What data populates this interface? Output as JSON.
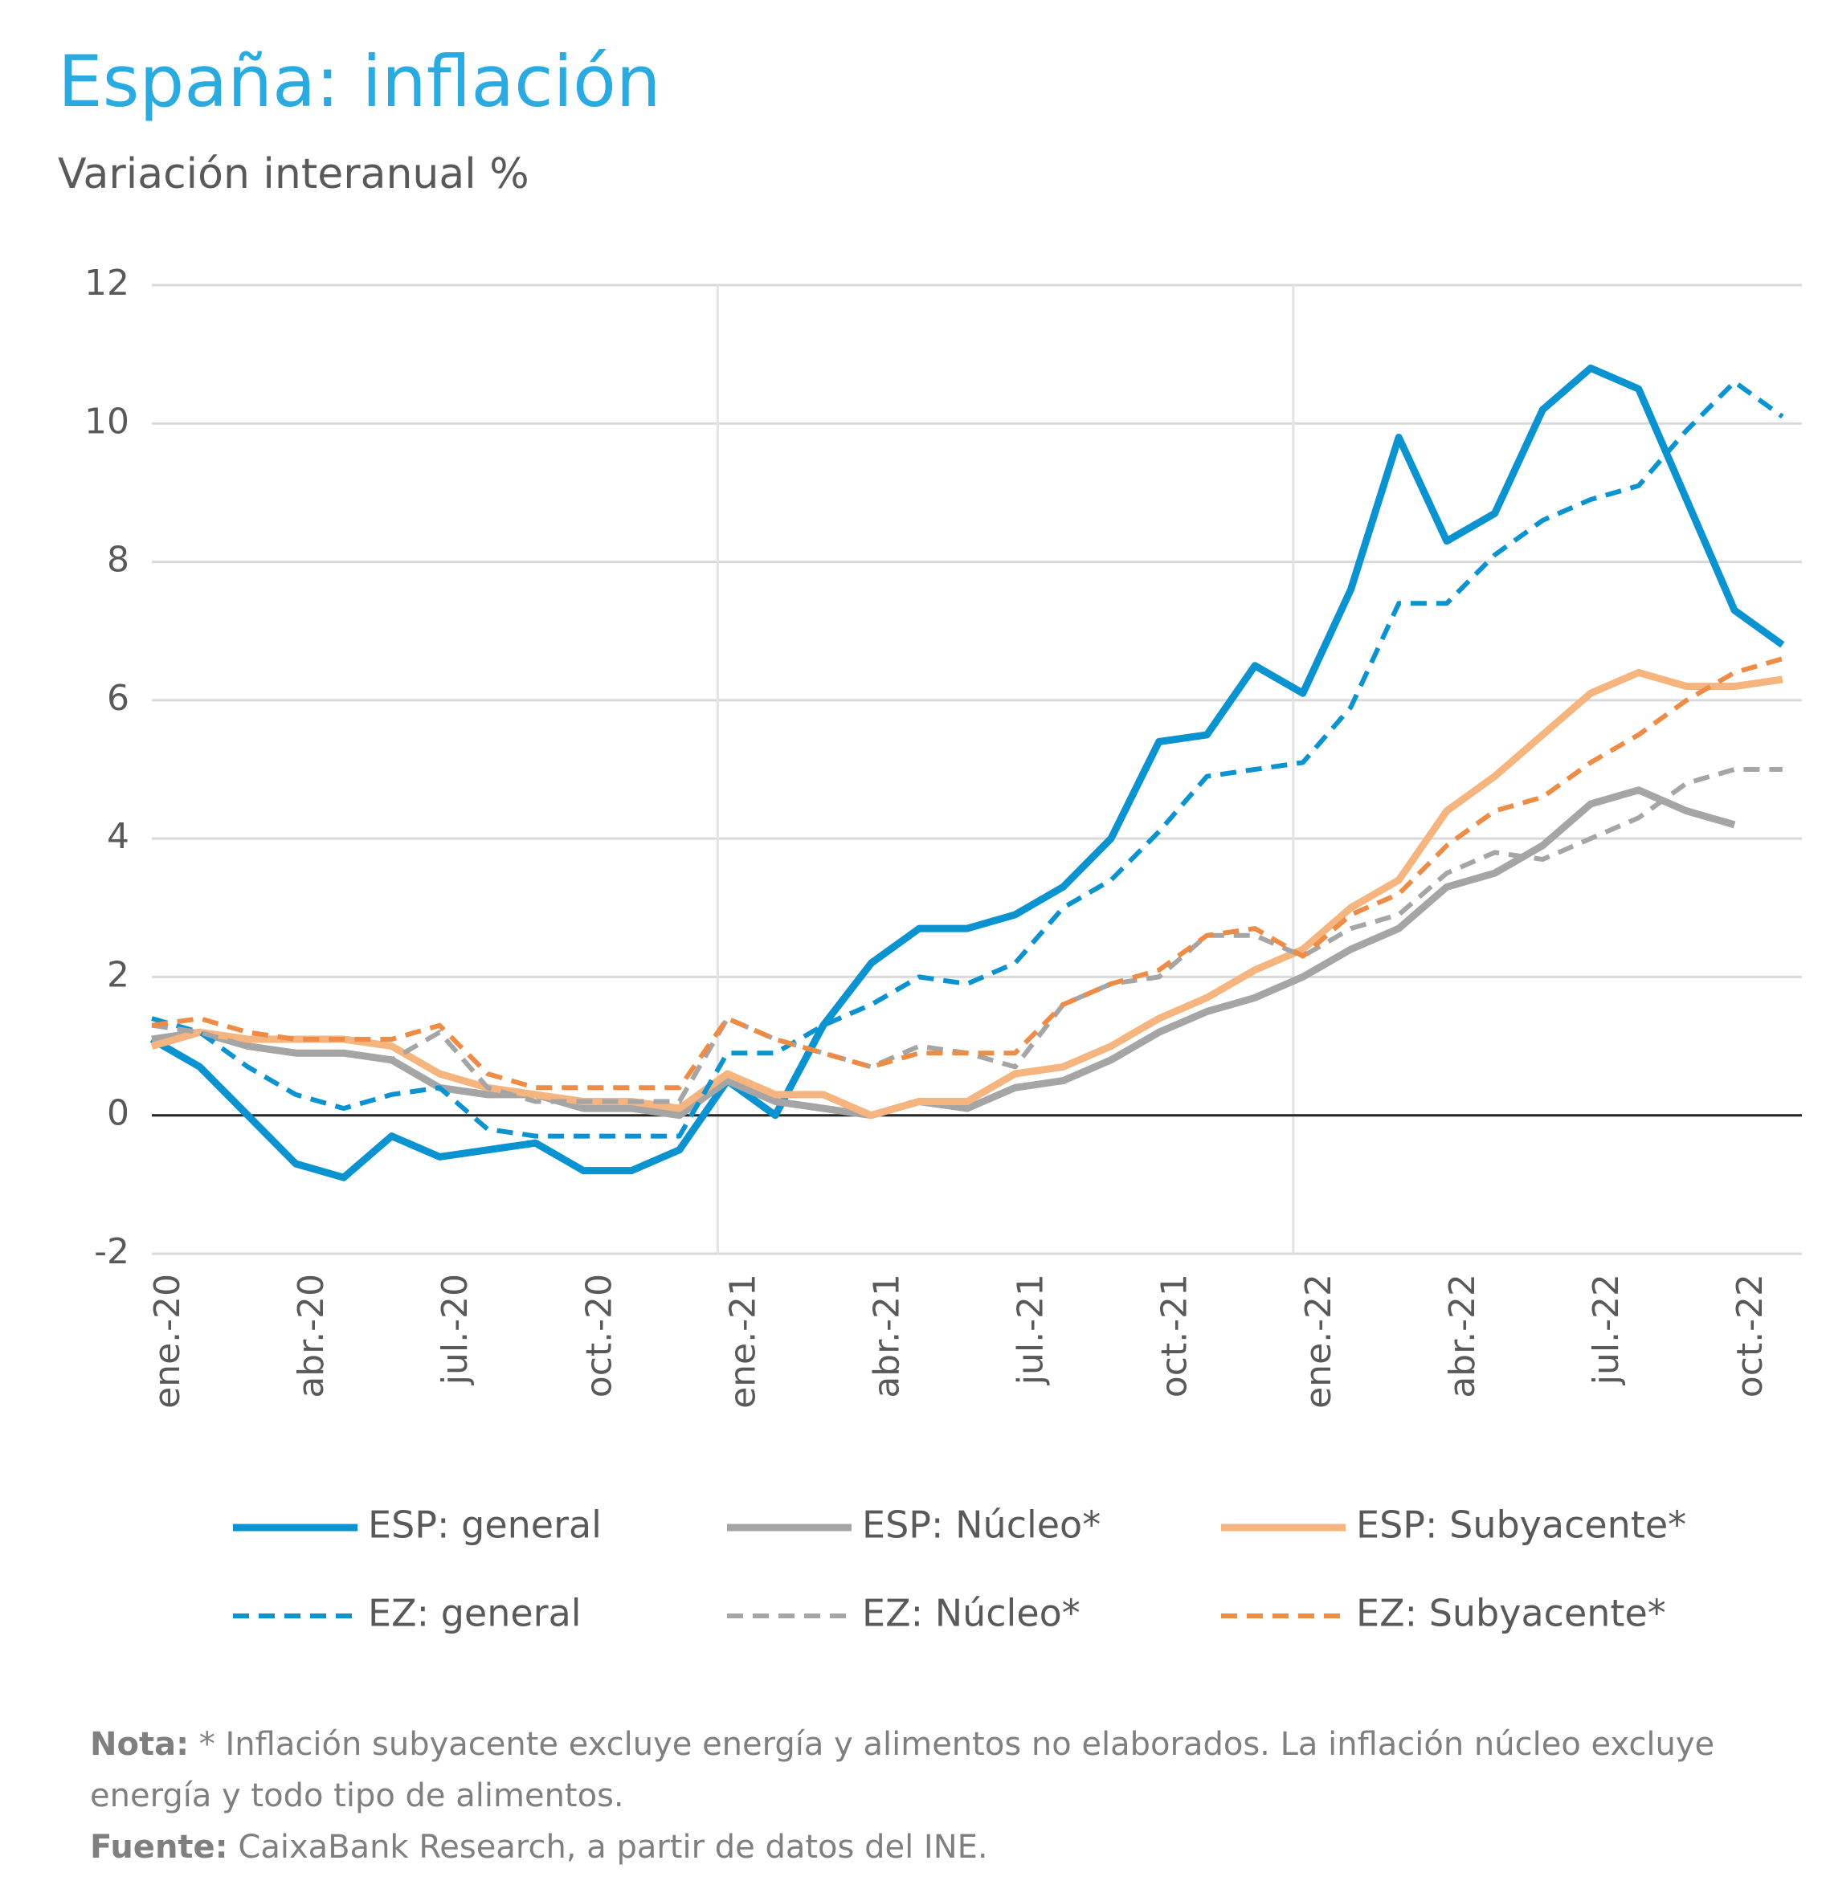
{
  "chart_data": {
    "type": "line",
    "title": "España: inflación",
    "subtitle": "Variación interanual %",
    "categories": [
      "ene.-20",
      null,
      null,
      "abr.-20",
      null,
      null,
      "jul.-20",
      null,
      null,
      "oct.-20",
      null,
      null,
      "ene.-21",
      null,
      null,
      "abr.-21",
      null,
      null,
      "jul.-21",
      null,
      null,
      "oct.-21",
      null,
      null,
      "ene.-22",
      null,
      null,
      "abr.-22",
      null,
      null,
      "jul.-22",
      null,
      null,
      "oct.-22",
      null
    ],
    "ylim": [
      -2,
      12
    ],
    "yticks": [
      -2,
      0,
      2,
      4,
      6,
      8,
      10,
      12
    ],
    "grid": true,
    "series": [
      {
        "name": "ESP: general",
        "color": "#0a93d1",
        "dashed": false,
        "values": [
          1.1,
          0.7,
          0.0,
          -0.7,
          -0.9,
          -0.3,
          -0.6,
          -0.5,
          -0.4,
          -0.8,
          -0.8,
          -0.5,
          0.5,
          0.0,
          1.3,
          2.2,
          2.7,
          2.7,
          2.9,
          3.3,
          4.0,
          5.4,
          5.5,
          6.5,
          6.1,
          7.6,
          9.8,
          8.3,
          8.7,
          10.2,
          10.8,
          10.5,
          8.9,
          7.3,
          6.8
        ]
      },
      {
        "name": "ESP: Núcleo*",
        "color": "#a5a5a5",
        "dashed": false,
        "values": [
          1.1,
          1.2,
          1.0,
          0.9,
          0.9,
          0.8,
          0.4,
          0.3,
          0.3,
          0.1,
          0.1,
          0.0,
          0.5,
          0.2,
          0.1,
          0.0,
          0.2,
          0.1,
          0.4,
          0.5,
          0.8,
          1.2,
          1.5,
          1.7,
          2.0,
          2.4,
          2.7,
          3.3,
          3.5,
          3.9,
          4.5,
          4.7,
          4.4,
          4.2,
          null
        ]
      },
      {
        "name": "ESP: Subyacente*",
        "color": "#f6b47f",
        "dashed": false,
        "values": [
          1.0,
          1.2,
          1.1,
          1.1,
          1.1,
          1.0,
          0.6,
          0.4,
          0.3,
          0.2,
          0.2,
          0.1,
          0.6,
          0.3,
          0.3,
          0.0,
          0.2,
          0.2,
          0.6,
          0.7,
          1.0,
          1.4,
          1.7,
          2.1,
          2.4,
          3.0,
          3.4,
          4.4,
          4.9,
          5.5,
          6.1,
          6.4,
          6.2,
          6.2,
          6.3
        ]
      },
      {
        "name": "EZ: general",
        "color": "#0a93d1",
        "dashed": true,
        "values": [
          1.4,
          1.2,
          0.7,
          0.3,
          0.1,
          0.3,
          0.4,
          -0.2,
          -0.3,
          -0.3,
          -0.3,
          -0.3,
          0.9,
          0.9,
          1.3,
          1.6,
          2.0,
          1.9,
          2.2,
          3.0,
          3.4,
          4.1,
          4.9,
          5.0,
          5.1,
          5.9,
          7.4,
          7.4,
          8.1,
          8.6,
          8.9,
          9.1,
          9.9,
          10.6,
          10.1
        ]
      },
      {
        "name": "EZ: Núcleo*",
        "color": "#a5a5a5",
        "dashed": true,
        "values": [
          1.3,
          1.2,
          1.0,
          0.9,
          0.9,
          0.8,
          1.2,
          0.4,
          0.2,
          0.2,
          0.2,
          0.2,
          1.4,
          1.1,
          0.9,
          0.7,
          1.0,
          0.9,
          0.7,
          1.6,
          1.9,
          2.0,
          2.6,
          2.6,
          2.3,
          2.7,
          2.9,
          3.5,
          3.8,
          3.7,
          4.0,
          4.3,
          4.8,
          5.0,
          5.0
        ]
      },
      {
        "name": "EZ: Subyacente*",
        "color": "#ee8c45",
        "dashed": true,
        "values": [
          1.3,
          1.4,
          1.2,
          1.1,
          1.1,
          1.1,
          1.3,
          0.6,
          0.4,
          0.4,
          0.4,
          0.4,
          1.4,
          1.1,
          0.9,
          0.7,
          0.9,
          0.9,
          0.9,
          1.6,
          1.9,
          2.1,
          2.6,
          2.7,
          2.3,
          2.9,
          3.2,
          3.9,
          4.4,
          4.6,
          5.1,
          5.5,
          6.0,
          6.4,
          6.6
        ]
      }
    ],
    "note_label": "Nota:",
    "note": "* Inflación subyacente excluye energía y alimentos no elaborados. La inflación núcleo excluye energía y todo tipo de alimentos.",
    "source_label": "Fuente:",
    "source": "CaixaBank Research, a partir de datos del INE."
  }
}
